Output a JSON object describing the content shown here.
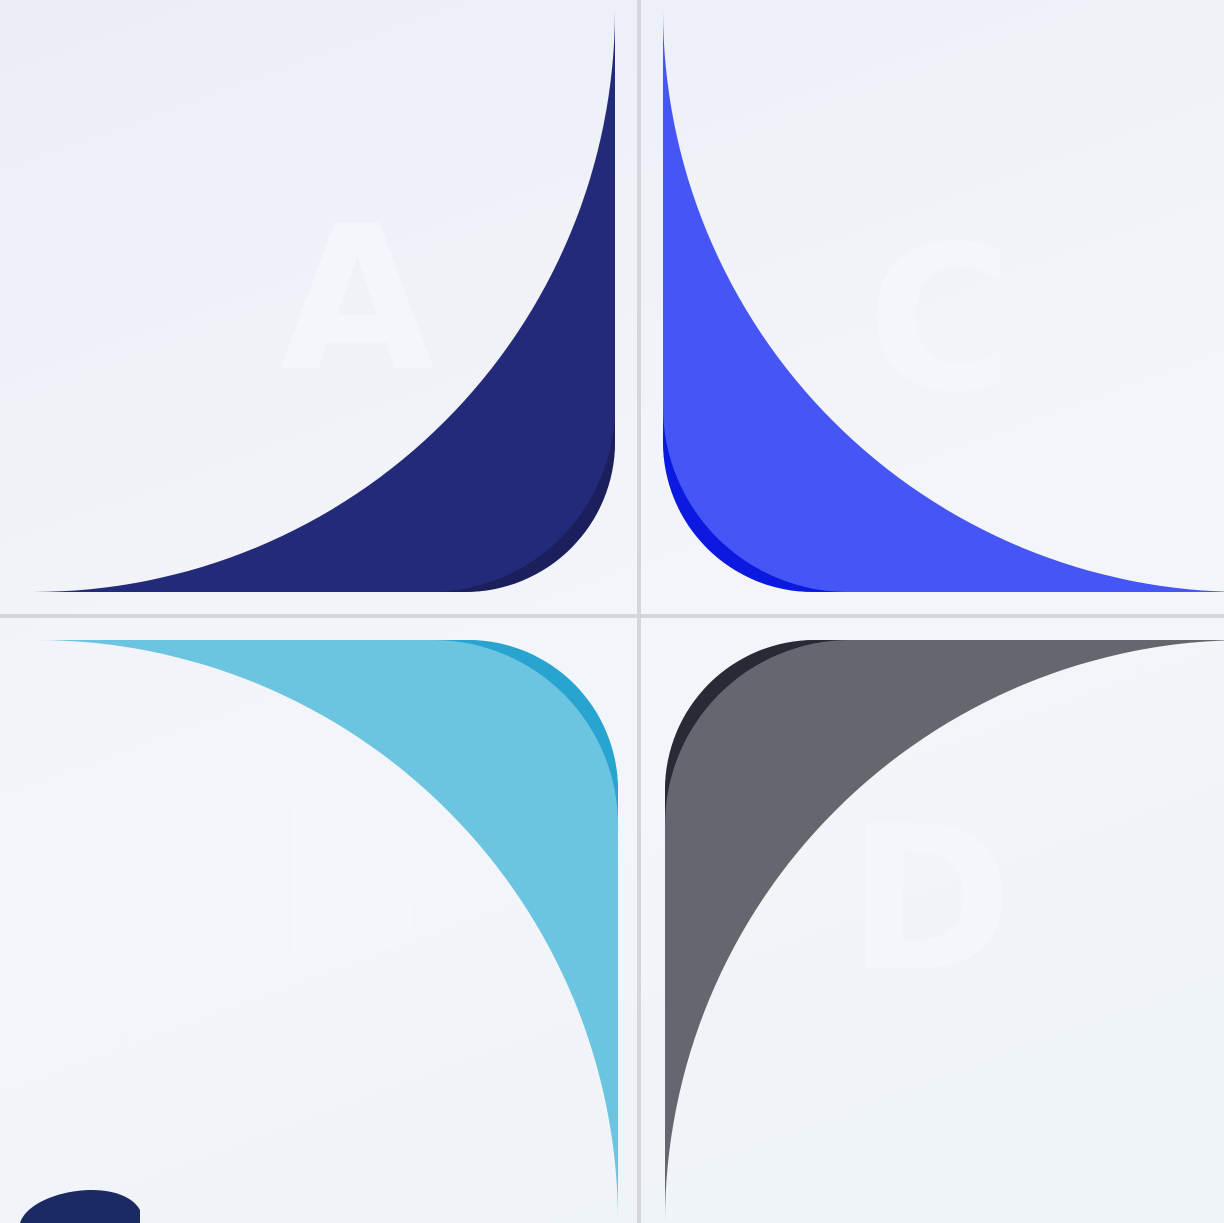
{
  "quadrants": [
    {
      "label": "A"
    },
    {
      "label": "B"
    },
    {
      "label": "C"
    },
    {
      "label": "D"
    }
  ]
}
